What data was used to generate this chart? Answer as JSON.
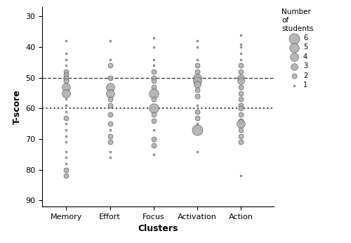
{
  "xlabel": "Clusters",
  "ylabel": "T-score",
  "clusters": [
    "Memory",
    "Effort",
    "Focus",
    "Activation",
    "Action"
  ],
  "cluster_x": [
    1,
    2,
    3,
    4,
    5
  ],
  "hline_dashed": 50,
  "hline_dotted": 60,
  "ylim": [
    27,
    92
  ],
  "yticks": [
    30,
    40,
    50,
    60,
    70,
    80,
    90
  ],
  "scatter_data": [
    {
      "cluster": 1,
      "t_score": 38,
      "count": 1
    },
    {
      "cluster": 1,
      "t_score": 42,
      "count": 1
    },
    {
      "cluster": 1,
      "t_score": 44,
      "count": 1
    },
    {
      "cluster": 1,
      "t_score": 46,
      "count": 1
    },
    {
      "cluster": 1,
      "t_score": 48,
      "count": 2
    },
    {
      "cluster": 1,
      "t_score": 49,
      "count": 2
    },
    {
      "cluster": 1,
      "t_score": 50,
      "count": 2
    },
    {
      "cluster": 1,
      "t_score": 51,
      "count": 2
    },
    {
      "cluster": 1,
      "t_score": 53,
      "count": 4
    },
    {
      "cluster": 1,
      "t_score": 55,
      "count": 4
    },
    {
      "cluster": 1,
      "t_score": 57,
      "count": 1
    },
    {
      "cluster": 1,
      "t_score": 59,
      "count": 1
    },
    {
      "cluster": 1,
      "t_score": 61,
      "count": 1
    },
    {
      "cluster": 1,
      "t_score": 63,
      "count": 2
    },
    {
      "cluster": 1,
      "t_score": 65,
      "count": 1
    },
    {
      "cluster": 1,
      "t_score": 67,
      "count": 1
    },
    {
      "cluster": 1,
      "t_score": 69,
      "count": 1
    },
    {
      "cluster": 1,
      "t_score": 71,
      "count": 1
    },
    {
      "cluster": 1,
      "t_score": 74,
      "count": 1
    },
    {
      "cluster": 1,
      "t_score": 76,
      "count": 1
    },
    {
      "cluster": 1,
      "t_score": 78,
      "count": 1
    },
    {
      "cluster": 1,
      "t_score": 80,
      "count": 2
    },
    {
      "cluster": 1,
      "t_score": 82,
      "count": 2
    },
    {
      "cluster": 2,
      "t_score": 38,
      "count": 1
    },
    {
      "cluster": 2,
      "t_score": 44,
      "count": 1
    },
    {
      "cluster": 2,
      "t_score": 46,
      "count": 2
    },
    {
      "cluster": 2,
      "t_score": 50,
      "count": 2
    },
    {
      "cluster": 2,
      "t_score": 53,
      "count": 4
    },
    {
      "cluster": 2,
      "t_score": 55,
      "count": 4
    },
    {
      "cluster": 2,
      "t_score": 57,
      "count": 2
    },
    {
      "cluster": 2,
      "t_score": 59,
      "count": 2
    },
    {
      "cluster": 2,
      "t_score": 62,
      "count": 2
    },
    {
      "cluster": 2,
      "t_score": 65,
      "count": 2
    },
    {
      "cluster": 2,
      "t_score": 67,
      "count": 1
    },
    {
      "cluster": 2,
      "t_score": 69,
      "count": 2
    },
    {
      "cluster": 2,
      "t_score": 71,
      "count": 2
    },
    {
      "cluster": 2,
      "t_score": 74,
      "count": 1
    },
    {
      "cluster": 2,
      "t_score": 76,
      "count": 1
    },
    {
      "cluster": 3,
      "t_score": 37,
      "count": 1
    },
    {
      "cluster": 3,
      "t_score": 40,
      "count": 1
    },
    {
      "cluster": 3,
      "t_score": 44,
      "count": 1
    },
    {
      "cluster": 3,
      "t_score": 46,
      "count": 1
    },
    {
      "cluster": 3,
      "t_score": 48,
      "count": 2
    },
    {
      "cluster": 3,
      "t_score": 50,
      "count": 2
    },
    {
      "cluster": 3,
      "t_score": 51,
      "count": 2
    },
    {
      "cluster": 3,
      "t_score": 53,
      "count": 2
    },
    {
      "cluster": 3,
      "t_score": 55,
      "count": 5
    },
    {
      "cluster": 3,
      "t_score": 57,
      "count": 2
    },
    {
      "cluster": 3,
      "t_score": 60,
      "count": 5
    },
    {
      "cluster": 3,
      "t_score": 62,
      "count": 2
    },
    {
      "cluster": 3,
      "t_score": 64,
      "count": 2
    },
    {
      "cluster": 3,
      "t_score": 67,
      "count": 1
    },
    {
      "cluster": 3,
      "t_score": 70,
      "count": 2
    },
    {
      "cluster": 3,
      "t_score": 72,
      "count": 2
    },
    {
      "cluster": 3,
      "t_score": 75,
      "count": 1
    },
    {
      "cluster": 4,
      "t_score": 38,
      "count": 1
    },
    {
      "cluster": 4,
      "t_score": 40,
      "count": 1
    },
    {
      "cluster": 4,
      "t_score": 44,
      "count": 1
    },
    {
      "cluster": 4,
      "t_score": 46,
      "count": 2
    },
    {
      "cluster": 4,
      "t_score": 48,
      "count": 2
    },
    {
      "cluster": 4,
      "t_score": 50,
      "count": 4
    },
    {
      "cluster": 4,
      "t_score": 51,
      "count": 4
    },
    {
      "cluster": 4,
      "t_score": 52,
      "count": 3
    },
    {
      "cluster": 4,
      "t_score": 54,
      "count": 2
    },
    {
      "cluster": 4,
      "t_score": 56,
      "count": 2
    },
    {
      "cluster": 4,
      "t_score": 59,
      "count": 1
    },
    {
      "cluster": 4,
      "t_score": 61,
      "count": 2
    },
    {
      "cluster": 4,
      "t_score": 63,
      "count": 2
    },
    {
      "cluster": 4,
      "t_score": 65,
      "count": 1
    },
    {
      "cluster": 4,
      "t_score": 67,
      "count": 6
    },
    {
      "cluster": 4,
      "t_score": 74,
      "count": 1
    },
    {
      "cluster": 5,
      "t_score": 36,
      "count": 1
    },
    {
      "cluster": 5,
      "t_score": 39,
      "count": 1
    },
    {
      "cluster": 5,
      "t_score": 40,
      "count": 1
    },
    {
      "cluster": 5,
      "t_score": 42,
      "count": 1
    },
    {
      "cluster": 5,
      "t_score": 44,
      "count": 1
    },
    {
      "cluster": 5,
      "t_score": 46,
      "count": 2
    },
    {
      "cluster": 5,
      "t_score": 48,
      "count": 2
    },
    {
      "cluster": 5,
      "t_score": 50,
      "count": 3
    },
    {
      "cluster": 5,
      "t_score": 51,
      "count": 3
    },
    {
      "cluster": 5,
      "t_score": 53,
      "count": 2
    },
    {
      "cluster": 5,
      "t_score": 55,
      "count": 2
    },
    {
      "cluster": 5,
      "t_score": 57,
      "count": 2
    },
    {
      "cluster": 5,
      "t_score": 59,
      "count": 2
    },
    {
      "cluster": 5,
      "t_score": 60,
      "count": 2
    },
    {
      "cluster": 5,
      "t_score": 62,
      "count": 2
    },
    {
      "cluster": 5,
      "t_score": 64,
      "count": 2
    },
    {
      "cluster": 5,
      "t_score": 65,
      "count": 4
    },
    {
      "cluster": 5,
      "t_score": 67,
      "count": 2
    },
    {
      "cluster": 5,
      "t_score": 69,
      "count": 2
    },
    {
      "cluster": 5,
      "t_score": 71,
      "count": 2
    },
    {
      "cluster": 5,
      "t_score": 82,
      "count": 1
    }
  ],
  "legend_counts": [
    6,
    5,
    4,
    3,
    2,
    1
  ],
  "face_color": "#b0b0b0",
  "edge_color": "#404040",
  "background_color": "#ffffff",
  "min_size": 4,
  "size_factor": 18
}
